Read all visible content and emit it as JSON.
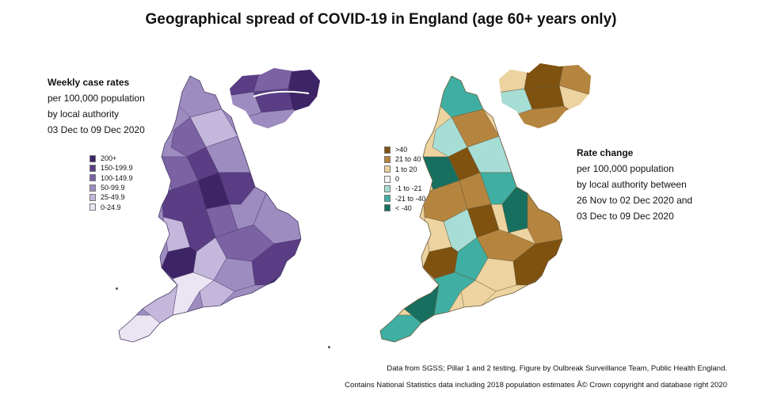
{
  "title": "Geographical spread of COVID-19 in England (age 60+ years only)",
  "left_caption": {
    "heading": "Weekly case rates",
    "line1": "per 100,000 population",
    "line2": "by local authority",
    "line3": "03 Dec to 09 Dec 2020"
  },
  "left_legend": [
    {
      "label": "200+",
      "color": "#3d2466"
    },
    {
      "label": "150-199.9",
      "color": "#5a3d85"
    },
    {
      "label": "100-149.9",
      "color": "#7a62a3"
    },
    {
      "label": "50-99.9",
      "color": "#9d8cc0"
    },
    {
      "label": "25-49.9",
      "color": "#c4b7dc"
    },
    {
      "label": "0-24.9",
      "color": "#ebe5f3"
    }
  ],
  "right_caption": {
    "heading": "Rate change",
    "line1": "per 100,000 population",
    "line2": "by local authority between",
    "line3": "26 Nov to 02 Dec 2020 and",
    "line4": "03 Dec to 09 Dec 2020"
  },
  "right_legend": [
    {
      "label": ">40",
      "color": "#7f5210"
    },
    {
      "label": "21 to 40",
      "color": "#b5853f"
    },
    {
      "label": "1 to 20",
      "color": "#ecd3a0"
    },
    {
      "label": "0",
      "color": "#f4f4f4"
    },
    {
      "label": "-1 to -21",
      "color": "#a6ddd5"
    },
    {
      "label": "-21 to -40",
      "color": "#3eafa2"
    },
    {
      "label": "< -40",
      "color": "#17705f"
    }
  ],
  "footnote1": "Data from SGSS; Pillar 1 and 2 testing. Figure by Oulbreak Surveillance Team, Public Health England.",
  "footnote2": "Contains National Statistics data including 2018 population estimates Â© Crown copyright and database right 2020",
  "colors": {
    "purple_border": "#4a3a66",
    "tan_border": "#6b5a3a"
  }
}
